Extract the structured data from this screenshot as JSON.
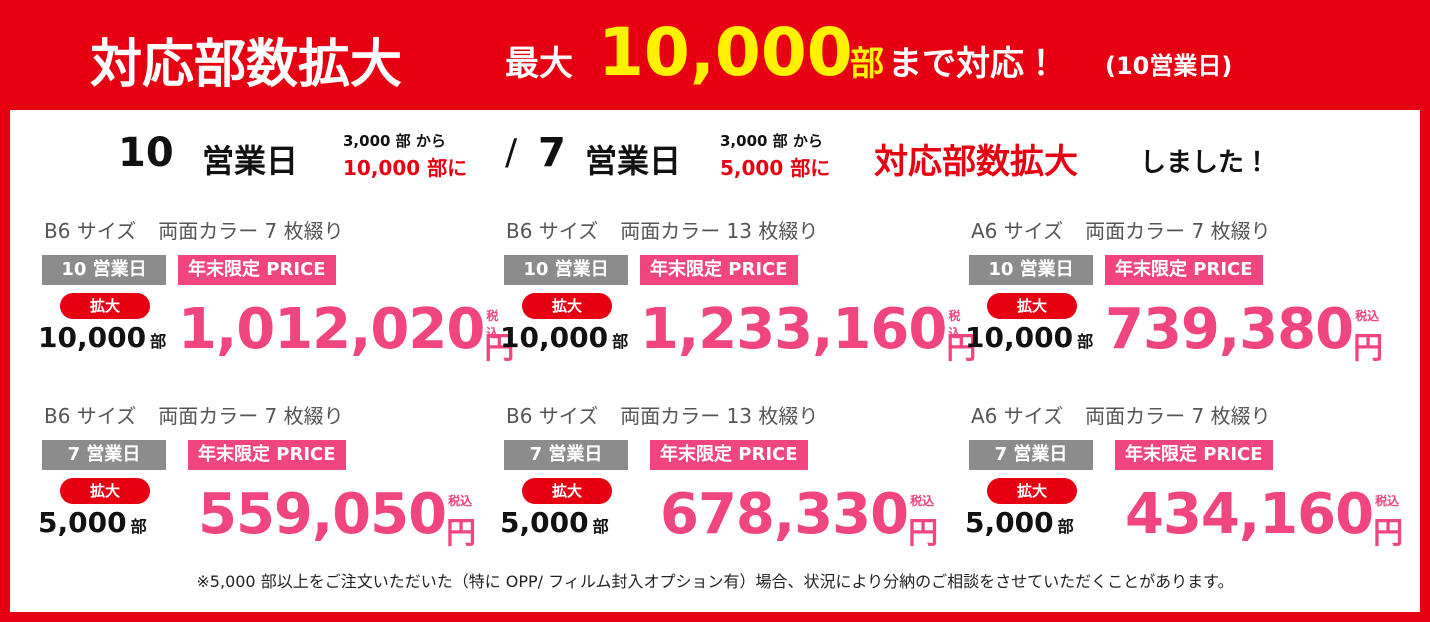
{
  "header": {
    "title": "対応部数拡大",
    "max_label": "最大",
    "max_value": "10,000",
    "max_unit": "部",
    "max_suffix": "まで対応！",
    "max_note": "(10営業日)"
  },
  "subheading": {
    "days_a": "10",
    "days_a_label": "営業日",
    "from_a": "3,000 部 から",
    "to_a": "10,000 部に",
    "separator": "/",
    "days_b": "7",
    "days_b_label": "営業日",
    "from_b": "3,000 部 から",
    "to_b": "5,000 部に",
    "highlight": "対応部数拡大",
    "suffix": "しました！"
  },
  "cards": [
    {
      "size": "B6 サイズ",
      "spec": "両面カラー 7 枚綴り",
      "days": "10 営業日",
      "badge": "年末限定 PRICE",
      "expand": "拡大",
      "quantity": "10,000",
      "quantity_unit": "部",
      "price": "1,012,020",
      "tax": "税込",
      "yen": "円"
    },
    {
      "size": "B6 サイズ",
      "spec": "両面カラー 13 枚綴り",
      "days": "10 営業日",
      "badge": "年末限定 PRICE",
      "expand": "拡大",
      "quantity": "10,000",
      "quantity_unit": "部",
      "price": "1,233,160",
      "tax": "税込",
      "yen": "円"
    },
    {
      "size": "A6 サイズ",
      "spec": "両面カラー 7 枚綴り",
      "days": "10 営業日",
      "badge": "年末限定 PRICE",
      "expand": "拡大",
      "quantity": "10,000",
      "quantity_unit": "部",
      "price": "739,380",
      "tax": "税込",
      "yen": "円"
    },
    {
      "size": "B6 サイズ",
      "spec": "両面カラー 7 枚綴り",
      "days": "7 営業日",
      "badge": "年末限定 PRICE",
      "expand": "拡大",
      "quantity": "5,000",
      "quantity_unit": "部",
      "price": "559,050",
      "tax": "税込",
      "yen": "円"
    },
    {
      "size": "B6 サイズ",
      "spec": "両面カラー 13 枚綴り",
      "days": "7 営業日",
      "badge": "年末限定 PRICE",
      "expand": "拡大",
      "quantity": "5,000",
      "quantity_unit": "部",
      "price": "678,330",
      "tax": "税込",
      "yen": "円"
    },
    {
      "size": "A6 サイズ",
      "spec": "両面カラー 7 枚綴り",
      "days": "7 営業日",
      "badge": "年末限定 PRICE",
      "expand": "拡大",
      "quantity": "5,000",
      "quantity_unit": "部",
      "price": "434,160",
      "tax": "税込",
      "yen": "円"
    }
  ],
  "note": "※5,000 部以上をご注文いただいた（特に OPP/ フィルム封入オプション有）場合、状況により分納のご相談をさせていただくことがあります。"
}
